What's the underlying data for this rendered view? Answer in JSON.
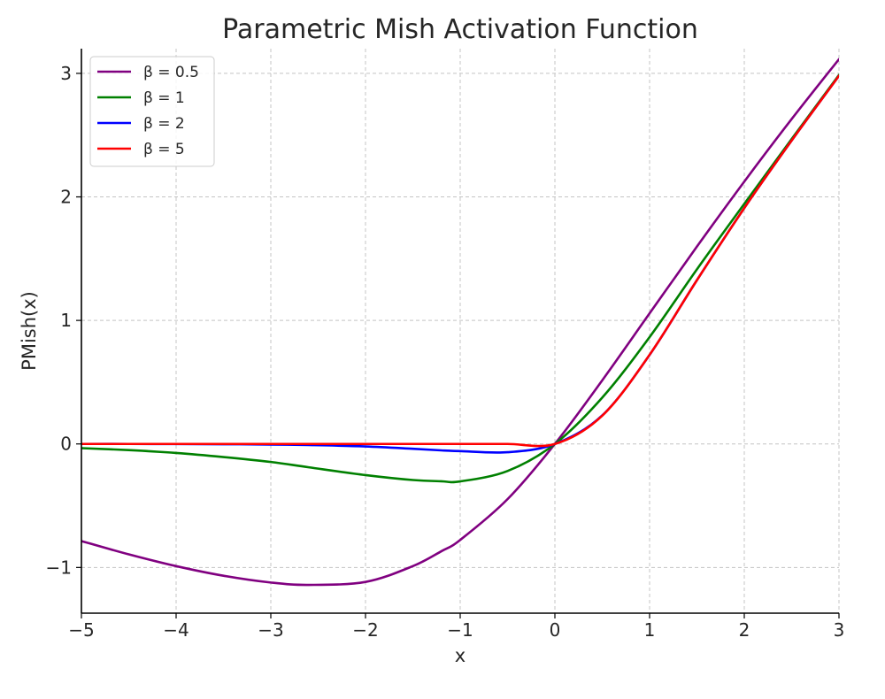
{
  "chart_data": {
    "type": "line",
    "title": "Parametric Mish Activation Function",
    "xlabel": "x",
    "ylabel": "PMish(x)",
    "xlim": [
      -5,
      3
    ],
    "ylim": [
      -1.37,
      3.2
    ],
    "grid": true,
    "legend_position": "top-left",
    "x_ticks": [
      -5,
      -4,
      -3,
      -2,
      -1,
      0,
      1,
      2,
      3
    ],
    "x_tick_labels": [
      "−5",
      "−4",
      "−3",
      "−2",
      "−1",
      "0",
      "1",
      "2",
      "3"
    ],
    "y_ticks": [
      -1,
      0,
      1,
      2,
      3
    ],
    "y_tick_labels": [
      "−1",
      "0",
      "1",
      "2",
      "3"
    ],
    "x": [
      -5,
      -4.5,
      -4,
      -3.5,
      -3,
      -2.6,
      -2,
      -1.5,
      -1.2,
      -1,
      -0.5,
      0,
      0.5,
      1,
      1.5,
      2,
      2.5,
      3
    ],
    "series": [
      {
        "name": "β = 0.5",
        "color": "#800080",
        "values": [
          -0.786,
          -0.894,
          -0.989,
          -1.067,
          -1.122,
          -1.141,
          -1.117,
          -0.989,
          -0.869,
          -0.777,
          -0.447,
          0.0,
          0.515,
          1.057,
          1.598,
          2.124,
          2.63,
          3.115
        ]
      },
      {
        "name": "β = 1",
        "color": "#008000",
        "values": [
          -0.034,
          -0.05,
          -0.073,
          -0.106,
          -0.146,
          -0.189,
          -0.252,
          -0.292,
          -0.302,
          -0.303,
          -0.219,
          0.0,
          0.375,
          0.865,
          1.414,
          1.944,
          2.468,
          2.987
        ]
      },
      {
        "name": "β = 2",
        "color": "#0000ff",
        "values": [
          0.0,
          0.0,
          -0.001,
          -0.002,
          -0.005,
          -0.009,
          -0.02,
          -0.039,
          -0.052,
          -0.058,
          -0.067,
          0.0,
          0.231,
          0.721,
          1.326,
          1.91,
          2.456,
          2.98
        ]
      },
      {
        "name": "β = 5",
        "color": "#ff0000",
        "values": [
          0.0,
          0.0,
          0.0,
          0.0,
          0.0,
          0.0,
          0.0,
          0.0,
          0.0,
          0.0,
          0.0,
          0.0,
          0.229,
          0.722,
          1.326,
          1.91,
          2.456,
          2.98
        ]
      }
    ]
  }
}
